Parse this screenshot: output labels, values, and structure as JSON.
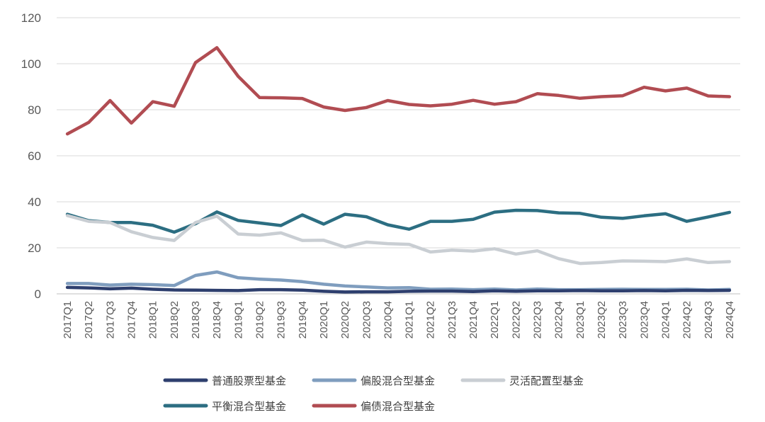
{
  "chart_data": {
    "type": "line",
    "title": "",
    "xlabel": "",
    "ylabel": "",
    "ylim": [
      0,
      120
    ],
    "yticks": [
      0,
      20,
      40,
      60,
      80,
      100,
      120
    ],
    "grid": true,
    "legend_position": "bottom",
    "categories": [
      "2017Q1",
      "2017Q2",
      "2017Q3",
      "2017Q4",
      "2018Q1",
      "2018Q2",
      "2018Q3",
      "2018Q4",
      "2019Q1",
      "2019Q2",
      "2019Q3",
      "2019Q4",
      "2020Q1",
      "2020Q2",
      "2020Q3",
      "2020Q4",
      "2021Q1",
      "2021Q2",
      "2021Q3",
      "2021Q4",
      "2022Q1",
      "2022Q2",
      "2022Q3",
      "2022Q4",
      "2023Q1",
      "2023Q2",
      "2023Q3",
      "2023Q4",
      "2024Q1",
      "2024Q2",
      "2024Q3",
      "2024Q4"
    ],
    "series": [
      {
        "name": "普通股票型基金",
        "color": "#2e3f6e",
        "values": [
          2.8,
          2.6,
          2.2,
          2.5,
          2.0,
          1.7,
          1.6,
          1.5,
          1.4,
          1.8,
          1.8,
          1.6,
          1.1,
          0.8,
          0.9,
          0.9,
          1.1,
          1.2,
          1.2,
          1.0,
          1.3,
          1.1,
          1.3,
          1.3,
          1.4,
          1.3,
          1.3,
          1.4,
          1.3,
          1.5,
          1.4,
          1.5
        ]
      },
      {
        "name": "偏股混合型基金",
        "color": "#7f9dbe",
        "values": [
          4.5,
          4.5,
          3.8,
          4.2,
          4.0,
          3.6,
          8.0,
          9.5,
          7.0,
          6.4,
          6.0,
          5.3,
          4.2,
          3.4,
          3.0,
          2.6,
          2.7,
          2.0,
          2.1,
          1.8,
          2.1,
          1.7,
          2.1,
          1.8,
          1.8,
          1.9,
          2.0,
          1.9,
          1.9,
          2.0,
          1.7,
          1.9
        ]
      },
      {
        "name": "灵活配置型基金",
        "color": "#c9ced3",
        "values": [
          34.0,
          31.5,
          31.0,
          27.0,
          24.5,
          23.2,
          31.0,
          33.8,
          26.0,
          25.5,
          26.5,
          23.2,
          23.3,
          20.3,
          22.5,
          21.8,
          21.5,
          18.2,
          19.0,
          18.6,
          19.6,
          17.3,
          18.7,
          15.3,
          13.2,
          13.6,
          14.3,
          14.2,
          14.0,
          15.2,
          13.6,
          14.0
        ]
      },
      {
        "name": "平衡混合型基金",
        "color": "#2c6e82",
        "values": [
          34.6,
          31.8,
          31.0,
          31.0,
          29.8,
          26.8,
          30.5,
          35.6,
          31.9,
          30.8,
          29.7,
          34.3,
          30.3,
          34.6,
          33.5,
          30.0,
          28.1,
          31.5,
          31.5,
          32.4,
          35.5,
          36.3,
          36.2,
          35.2,
          35.0,
          33.3,
          32.8,
          33.9,
          34.8,
          31.5,
          33.4,
          35.4
        ]
      },
      {
        "name": "偏债混合型基金",
        "color": "#b14c52",
        "values": [
          69.5,
          74.5,
          84.0,
          74.2,
          83.5,
          81.5,
          100.5,
          107.0,
          94.5,
          85.3,
          85.2,
          84.9,
          81.2,
          79.7,
          81.0,
          84.0,
          82.3,
          81.7,
          82.4,
          84.1,
          82.4,
          83.5,
          87.0,
          86.2,
          85.0,
          85.7,
          86.1,
          89.8,
          88.2,
          89.4,
          86.0,
          85.7
        ]
      }
    ]
  }
}
